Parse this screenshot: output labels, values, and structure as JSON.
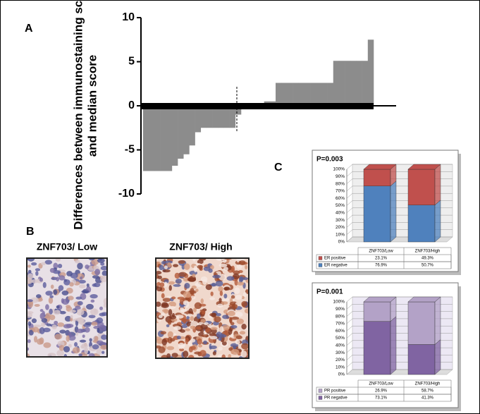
{
  "panels": [
    "A",
    "B",
    "C"
  ],
  "images": [
    {
      "title": "ZNF703/ Low"
    },
    {
      "title": "ZNF703/ High"
    }
  ],
  "chart_data": [
    {
      "type": "bar",
      "ylabel": [
        "Differences between immunostaining score",
        "and median score"
      ],
      "categories": [
        null,
        null,
        null,
        null,
        null,
        null,
        null,
        null,
        null,
        null,
        null,
        null,
        null,
        null,
        null,
        null,
        null,
        null,
        null,
        null,
        null,
        null,
        null,
        null,
        null,
        null,
        null,
        null,
        null,
        null,
        null,
        null,
        null,
        null,
        null,
        null,
        null,
        null,
        null,
        null
      ],
      "values": [
        -7.4,
        -7.4,
        -7.4,
        -7.4,
        -7.4,
        -6.8,
        -6.0,
        -5.5,
        -4.5,
        -3.0,
        -2.5,
        -2.5,
        -2.5,
        -2.5,
        -2.5,
        -2.5,
        -1.0,
        0,
        0,
        0,
        0,
        0.5,
        0.5,
        2.6,
        2.6,
        2.6,
        2.6,
        2.6,
        2.6,
        2.6,
        2.6,
        2.6,
        2.6,
        5.1,
        5.1,
        5.1,
        5.1,
        5.1,
        5.1,
        7.5
      ],
      "color": "#8c8c8c",
      "ylim": [
        -10,
        10
      ],
      "yticks": [
        -10,
        -5,
        0,
        5,
        10
      ]
    },
    {
      "type": "stacked-bar",
      "title": "P=0.003",
      "categories": [
        "ZNF703/Low",
        "ZNF703/High"
      ],
      "series": [
        {
          "name": "ER positive",
          "color": "#c0504d",
          "values": [
            23.1,
            49.3
          ],
          "value_labels": [
            "23.1%",
            "49.3%"
          ]
        },
        {
          "name": "ER negative",
          "color": "#4f81bd",
          "values": [
            76.9,
            50.7
          ],
          "value_labels": [
            "76.9%",
            "50.7%"
          ]
        }
      ],
      "ylim": [
        0,
        100
      ],
      "yticks": [
        {
          "value": 0,
          "label": "0%"
        },
        {
          "value": 10,
          "label": "10%"
        },
        {
          "value": 20,
          "label": "20%"
        },
        {
          "value": 30,
          "label": "30%"
        },
        {
          "value": 40,
          "label": "40%"
        },
        {
          "value": 50,
          "label": "50%"
        },
        {
          "value": 60,
          "label": "60%"
        },
        {
          "value": 70,
          "label": "70%"
        },
        {
          "value": 80,
          "label": "80%"
        },
        {
          "value": 90,
          "label": "90%"
        },
        {
          "value": 100,
          "label": "100%"
        }
      ]
    },
    {
      "type": "stacked-bar",
      "title": "P=0.001",
      "categories": [
        "ZNF703/Low",
        "ZNF703/High"
      ],
      "series": [
        {
          "name": "PR positive",
          "color": "#b3a2c7",
          "values": [
            26.9,
            58.7
          ],
          "value_labels": [
            "26.9%",
            "58.7%"
          ]
        },
        {
          "name": "PR negative",
          "color": "#8064a2",
          "values": [
            73.1,
            41.3
          ],
          "value_labels": [
            "73.1%",
            "41.3%"
          ]
        }
      ],
      "ylim": [
        0,
        100
      ],
      "yticks": [
        {
          "value": 0,
          "label": "0%"
        },
        {
          "value": 10,
          "label": "10%"
        },
        {
          "value": 20,
          "label": "20%"
        },
        {
          "value": 30,
          "label": "30%"
        },
        {
          "value": 40,
          "label": "40%"
        },
        {
          "value": 50,
          "label": "50%"
        },
        {
          "value": 60,
          "label": "60%"
        },
        {
          "value": 70,
          "label": "70%"
        },
        {
          "value": 80,
          "label": "80%"
        },
        {
          "value": 90,
          "label": "90%"
        },
        {
          "value": 100,
          "label": "100%"
        }
      ]
    }
  ]
}
